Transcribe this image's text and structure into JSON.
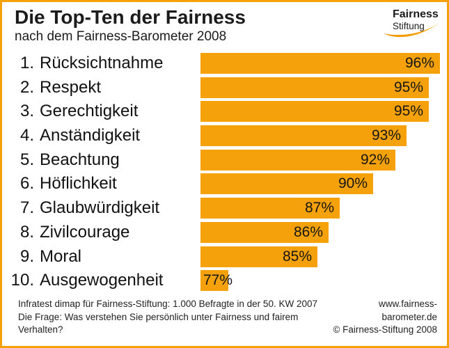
{
  "logo": {
    "line1": "Fairness",
    "line2": "Stiftung",
    "swoosh_icon": "orange-swoosh",
    "color": "#F5A10C"
  },
  "chart_data": {
    "type": "bar",
    "orientation": "horizontal",
    "title": "Die Top-Ten der Fairness",
    "subtitle": "nach dem Fairness-Barometer 2008",
    "ranks": [
      "1.",
      "2.",
      "3.",
      "4.",
      "5.",
      "6.",
      "7.",
      "8.",
      "9.",
      "10."
    ],
    "categories": [
      "Rücksichtnahme",
      "Respekt",
      "Gerechtigkeit",
      "Anständigkeit",
      "Beachtung",
      "Höflichkeit",
      "Glaubwürdigkeit",
      "Zivilcourage",
      "Moral",
      "Ausgewogenheit"
    ],
    "values": [
      96,
      95,
      95,
      93,
      92,
      90,
      87,
      86,
      85,
      77
    ],
    "value_suffix": "%",
    "value_label_position": "inside-right",
    "xlim": [
      74.5,
      96
    ],
    "bar_color": "#F5A10C",
    "grid": false,
    "legend": false
  },
  "footer": {
    "left_line1": "Infratest dimap für Fairness-Stiftung: 1.000 Befragte in der 50. KW 2007",
    "left_line2": "Die Frage: Was verstehen Sie persönlich unter Fairness und fairem Verhalten?",
    "right_line1": "www.fairness-barometer.de",
    "right_line2": "© Fairness-Stiftung 2008"
  },
  "colors": {
    "accent": "#F5A10C",
    "border": "#F5A10C",
    "text": "#1A1A1A",
    "background": "#FFFFFF"
  }
}
